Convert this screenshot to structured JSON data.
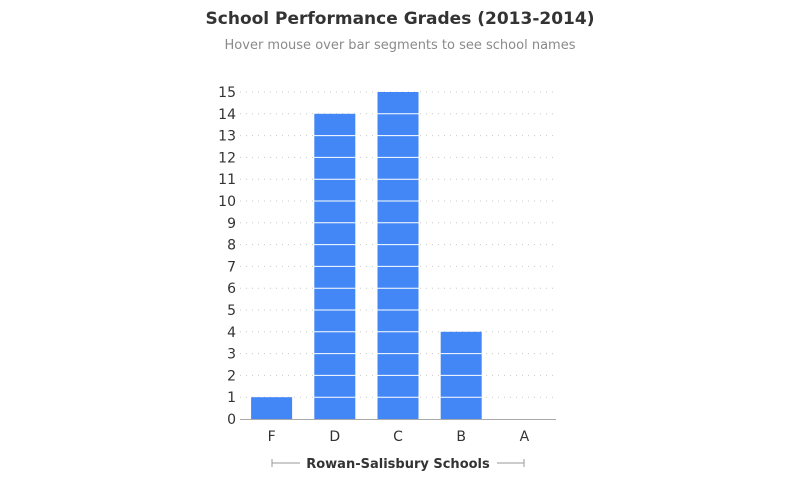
{
  "chart_data": {
    "type": "bar",
    "title": "School Performance Grades (2013-2014)",
    "subtitle": "Hover mouse over bar segments to see school names",
    "xlabel": "Rowan-Salisbury Schools",
    "ylabel": "",
    "categories": [
      "F",
      "D",
      "C",
      "B",
      "A"
    ],
    "values": [
      1,
      14,
      15,
      4,
      0
    ],
    "ylim": [
      0,
      15
    ],
    "yticks": [
      0,
      1,
      2,
      3,
      4,
      5,
      6,
      7,
      8,
      9,
      10,
      11,
      12,
      13,
      14,
      15
    ],
    "bar_color": "#4287f5",
    "segment_separator_color": "#ffffff",
    "grid": true,
    "grid_style": "dotted"
  }
}
